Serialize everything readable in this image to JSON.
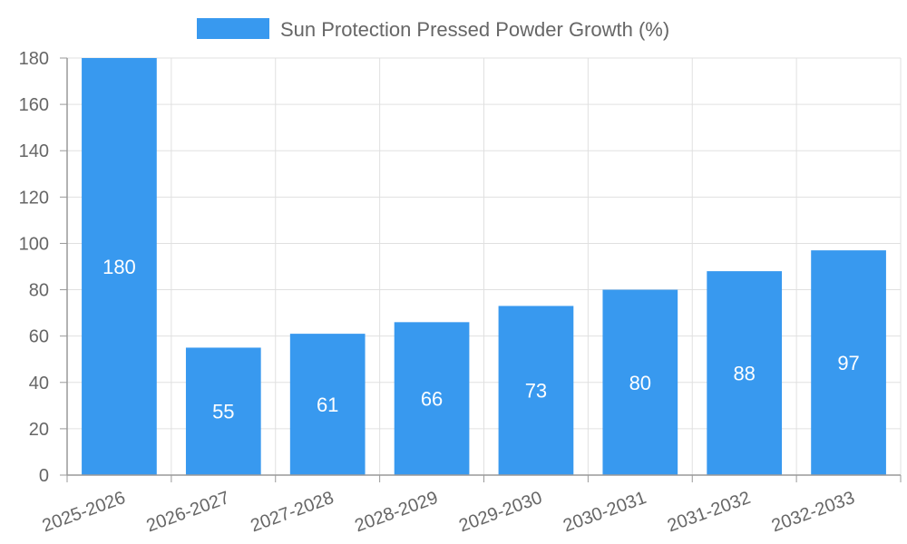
{
  "chart_data": {
    "type": "bar",
    "categories": [
      "2025-2026",
      "2026-2027",
      "2027-2028",
      "2028-2029",
      "2029-2030",
      "2030-2031",
      "2031-2032",
      "2032-2033"
    ],
    "series": [
      {
        "name": "Sun Protection Pressed Powder Growth (%)",
        "values": [
          180,
          55,
          61,
          66,
          73,
          80,
          88,
          97
        ],
        "color": "#3899ef"
      }
    ],
    "ylim": [
      0,
      180
    ],
    "yticks": [
      0,
      20,
      40,
      60,
      80,
      100,
      120,
      140,
      160,
      180
    ],
    "grid": true,
    "legend_position": "top",
    "data_labels": true
  }
}
